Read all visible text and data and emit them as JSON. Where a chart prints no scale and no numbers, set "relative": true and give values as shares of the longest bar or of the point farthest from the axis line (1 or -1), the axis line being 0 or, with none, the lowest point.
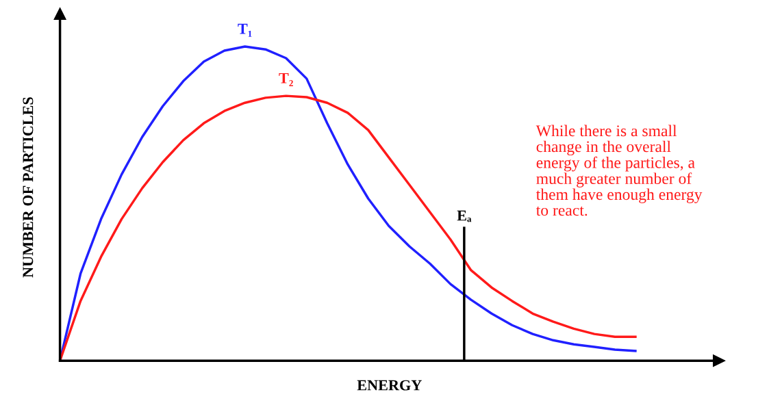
{
  "chart_data": {
    "type": "line",
    "relative": true,
    "xlabel": "ENERGY",
    "ylabel": "NUMBER OF PARTICLES",
    "categories": [
      null,
      null,
      null,
      null,
      null,
      null,
      null,
      null,
      null,
      null,
      null,
      null,
      null,
      null,
      null,
      null,
      null,
      null,
      null,
      null,
      null,
      null,
      null,
      null,
      null,
      null,
      null,
      null,
      null
    ],
    "series": [
      {
        "name": "T₁",
        "color": "#2020ff",
        "values": [
          0,
          0.277,
          0.451,
          0.593,
          0.712,
          0.81,
          0.89,
          0.952,
          0.987,
          1.0,
          0.991,
          0.963,
          0.898,
          0.756,
          0.625,
          0.516,
          0.429,
          0.364,
          0.309,
          0.244,
          0.194,
          0.15,
          0.113,
          0.085,
          0.065,
          0.052,
          0.044,
          0.035,
          0.031
        ]
      },
      {
        "name": "T₂",
        "color": "#ff1a1a",
        "values": [
          0,
          0.19,
          0.331,
          0.451,
          0.549,
          0.632,
          0.702,
          0.756,
          0.795,
          0.821,
          0.837,
          0.843,
          0.839,
          0.821,
          0.789,
          0.734,
          0.647,
          0.56,
          0.473,
          0.386,
          0.288,
          0.233,
          0.19,
          0.15,
          0.124,
          0.102,
          0.085,
          0.076,
          0.076
        ]
      }
    ],
    "annotations": [
      {
        "text": "Eₐ"
      },
      "While there is a small\nchange in the overall\nenergy of the particles, a\nmuch greater number of\nthem have enough energy\nto react."
    ],
    "legend": false,
    "marker": "none",
    "line_style": "solid"
  }
}
